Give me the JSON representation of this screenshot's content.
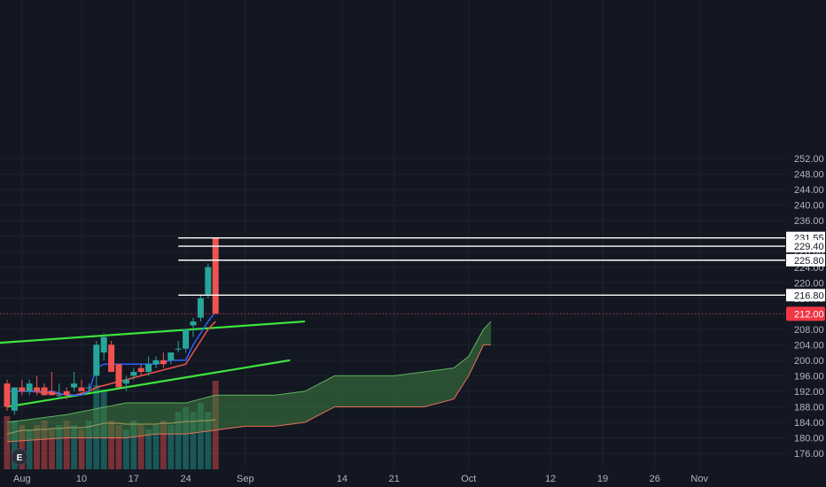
{
  "colors": {
    "background": "#131722",
    "grid": "#1e222d",
    "axis_text": "#b2b5be",
    "up": "#26a69a",
    "down": "#ef5350",
    "tenkan": "#2962ff",
    "kijun": "#f05350",
    "cloud": "#3f7d3f",
    "trendline": "#3ce63c",
    "level": "#ffffff",
    "volume_ma": "#f0b07a",
    "last_price": "#f23645"
  },
  "events_marker": "E",
  "chart_data": {
    "type": "candlestick",
    "ylim": [
      174,
      254
    ],
    "y_ticks": [
      "176.00",
      "180.00",
      "184.00",
      "188.00",
      "192.00",
      "196.00",
      "200.00",
      "204.00",
      "208.00",
      "212.00",
      "216.00",
      "220.00",
      "224.00",
      "228.00",
      "232.00",
      "236.00",
      "240.00",
      "244.00",
      "248.00",
      "252.00"
    ],
    "y_tick_values": [
      176,
      180,
      184,
      188,
      192,
      196,
      200,
      204,
      208,
      212,
      216,
      220,
      224,
      228,
      232,
      236,
      240,
      244,
      248,
      252
    ],
    "x_ticks": [
      {
        "label": "Aug",
        "day": 2
      },
      {
        "label": "10",
        "day": 10
      },
      {
        "label": "17",
        "day": 17
      },
      {
        "label": "24",
        "day": 24
      },
      {
        "label": "Sep",
        "day": 32
      },
      {
        "label": "14",
        "day": 45
      },
      {
        "label": "21",
        "day": 52
      },
      {
        "label": "Oct",
        "day": 62
      },
      {
        "label": "12",
        "day": 73
      },
      {
        "label": "19",
        "day": 80
      },
      {
        "label": "26",
        "day": 87
      },
      {
        "label": "Nov",
        "day": 93
      }
    ],
    "candles": [
      {
        "day": 0,
        "open": 194,
        "high": 195,
        "low": 187,
        "close": 188
      },
      {
        "day": 1,
        "open": 187,
        "high": 193,
        "low": 186,
        "close": 193
      },
      {
        "day": 2,
        "open": 193,
        "high": 195,
        "low": 191,
        "close": 192
      },
      {
        "day": 3,
        "open": 192,
        "high": 195,
        "low": 191,
        "close": 194
      },
      {
        "day": 4,
        "open": 193,
        "high": 196,
        "low": 191,
        "close": 192
      },
      {
        "day": 5,
        "open": 193,
        "high": 194,
        "low": 191,
        "close": 191
      },
      {
        "day": 6,
        "open": 192,
        "high": 197,
        "low": 191,
        "close": 191
      },
      {
        "day": 7,
        "open": 191,
        "high": 194,
        "low": 190,
        "close": 191
      },
      {
        "day": 8,
        "open": 192,
        "high": 193,
        "low": 190,
        "close": 191
      },
      {
        "day": 9,
        "open": 193,
        "high": 197,
        "low": 192,
        "close": 194
      },
      {
        "day": 10,
        "open": 193,
        "high": 195,
        "low": 192,
        "close": 192
      },
      {
        "day": 11,
        "open": 193,
        "high": 194,
        "low": 192,
        "close": 193
      },
      {
        "day": 12,
        "open": 196,
        "high": 205,
        "low": 193,
        "close": 204
      },
      {
        "day": 13,
        "open": 202,
        "high": 207,
        "low": 200,
        "close": 206
      },
      {
        "day": 14,
        "open": 204,
        "high": 205,
        "low": 197,
        "close": 197
      },
      {
        "day": 15,
        "open": 199,
        "high": 199,
        "low": 193,
        "close": 193
      },
      {
        "day": 16,
        "open": 194,
        "high": 196,
        "low": 192,
        "close": 195
      },
      {
        "day": 17,
        "open": 196,
        "high": 198,
        "low": 195,
        "close": 197
      },
      {
        "day": 18,
        "open": 198,
        "high": 199,
        "low": 196,
        "close": 197
      },
      {
        "day": 19,
        "open": 197,
        "high": 201,
        "low": 196,
        "close": 199
      },
      {
        "day": 20,
        "open": 199,
        "high": 201,
        "low": 198,
        "close": 200
      },
      {
        "day": 21,
        "open": 200,
        "high": 202,
        "low": 198,
        "close": 199
      },
      {
        "day": 22,
        "open": 200,
        "high": 202,
        "low": 199,
        "close": 202
      },
      {
        "day": 23,
        "open": 203,
        "high": 205,
        "low": 202,
        "close": 203
      },
      {
        "day": 24,
        "open": 203,
        "high": 208,
        "low": 202,
        "close": 208
      },
      {
        "day": 25,
        "open": 209,
        "high": 211,
        "low": 206,
        "close": 210
      },
      {
        "day": 26,
        "open": 211,
        "high": 217,
        "low": 210,
        "close": 216
      },
      {
        "day": 27,
        "open": 217,
        "high": 225,
        "low": 216,
        "close": 224
      },
      {
        "day": 28,
        "open": 231.5,
        "high": 231.5,
        "low": 212,
        "close": 212
      }
    ],
    "tenkan": [
      [
        0,
        192
      ],
      [
        2,
        192
      ],
      [
        4,
        192
      ],
      [
        6,
        192
      ],
      [
        8,
        191
      ],
      [
        10,
        191
      ],
      [
        11,
        192
      ],
      [
        12,
        198
      ],
      [
        13,
        199
      ],
      [
        14,
        199
      ],
      [
        16,
        199
      ],
      [
        18,
        199
      ],
      [
        20,
        199
      ],
      [
        22,
        200
      ],
      [
        24,
        200
      ],
      [
        25,
        204
      ],
      [
        26,
        207
      ],
      [
        27,
        210
      ],
      [
        28,
        212.5
      ]
    ],
    "kijun": [
      [
        0,
        192
      ],
      [
        3,
        192
      ],
      [
        6,
        191.5
      ],
      [
        9,
        191
      ],
      [
        11,
        192
      ],
      [
        12,
        193
      ],
      [
        14,
        194
      ],
      [
        16,
        195
      ],
      [
        18,
        196
      ],
      [
        20,
        197
      ],
      [
        22,
        198
      ],
      [
        24,
        199
      ],
      [
        25,
        202
      ],
      [
        26,
        205
      ],
      [
        27,
        208
      ],
      [
        28,
        210
      ]
    ],
    "cloud_upper": [
      [
        0,
        184
      ],
      [
        4,
        185
      ],
      [
        8,
        186
      ],
      [
        12,
        187.5
      ],
      [
        16,
        189
      ],
      [
        20,
        189
      ],
      [
        24,
        189
      ],
      [
        28,
        191
      ],
      [
        32,
        191
      ],
      [
        36,
        191
      ],
      [
        40,
        192
      ],
      [
        44,
        196
      ],
      [
        48,
        196
      ],
      [
        52,
        196
      ],
      [
        56,
        197
      ],
      [
        60,
        198
      ],
      [
        62,
        201
      ],
      [
        64,
        208
      ],
      [
        65,
        210
      ]
    ],
    "cloud_lower": [
      [
        0,
        179
      ],
      [
        4,
        179.5
      ],
      [
        8,
        180
      ],
      [
        12,
        180
      ],
      [
        16,
        180
      ],
      [
        20,
        181
      ],
      [
        24,
        181
      ],
      [
        28,
        182
      ],
      [
        32,
        183
      ],
      [
        36,
        183
      ],
      [
        40,
        184
      ],
      [
        44,
        188
      ],
      [
        48,
        188
      ],
      [
        52,
        188
      ],
      [
        56,
        188
      ],
      [
        60,
        190
      ],
      [
        62,
        196
      ],
      [
        64,
        204
      ],
      [
        65,
        204
      ]
    ],
    "trendlines": [
      {
        "from": [
          -1,
          204.5
        ],
        "to": [
          40,
          210
        ]
      },
      {
        "from": [
          0,
          188
        ],
        "to": [
          38,
          200
        ]
      }
    ],
    "levels": [
      "231.55",
      "229.40",
      "225.80",
      "216.80"
    ],
    "level_values": [
      231.55,
      229.4,
      225.8,
      216.8
    ],
    "level_start_day": 23,
    "last_price": "212.00",
    "last_price_value": 212,
    "volume": [
      0.6,
      0.55,
      0.5,
      0.45,
      0.5,
      0.55,
      0.45,
      0.5,
      0.55,
      0.5,
      0.45,
      0.55,
      0.95,
      0.9,
      0.55,
      0.5,
      0.45,
      0.55,
      0.5,
      0.45,
      0.5,
      0.55,
      0.5,
      0.65,
      0.7,
      0.65,
      0.75,
      0.65,
      1.0
    ],
    "volume_ma": [
      0.4,
      0.42,
      0.44,
      0.44,
      0.45,
      0.45,
      0.46,
      0.46,
      0.47,
      0.47,
      0.47,
      0.48,
      0.5,
      0.52,
      0.52,
      0.52,
      0.51,
      0.51,
      0.51,
      0.51,
      0.51,
      0.52,
      0.52,
      0.53,
      0.54,
      0.54,
      0.55,
      0.55,
      0.56
    ]
  }
}
